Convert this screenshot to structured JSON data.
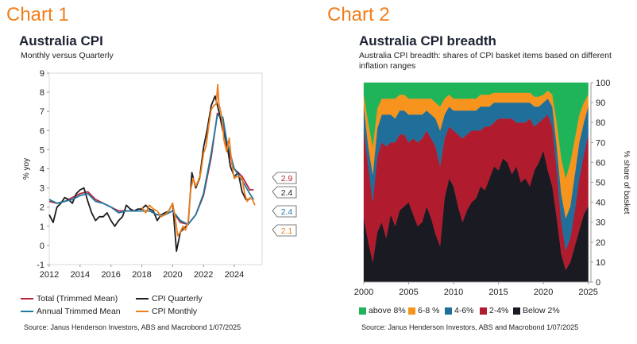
{
  "charts": [
    {
      "panel_label": "Chart 1",
      "title": "Australia CPI",
      "subtitle": "Monthly versus Quarterly",
      "ylabel": "% yoy",
      "source": "Source: Janus Henderson Investors, ABS and Macrobond  1/07/2025",
      "legend": [
        {
          "name": "Total (Trimmed Mean)",
          "color": "#b5233a"
        },
        {
          "name": "CPI Quarterly",
          "color": "#1d1d22"
        },
        {
          "name": "Annual Trimmed Mean",
          "color": "#1f7aa0"
        },
        {
          "name": "CPI Monthly",
          "color": "#f07e1a"
        }
      ],
      "end_labels": [
        {
          "text": "2.9",
          "color": "#b5233a"
        },
        {
          "text": "2.4",
          "color": "#1d1d22"
        },
        {
          "text": "2.4",
          "color": "#1f7aa0"
        },
        {
          "text": "2.1",
          "color": "#f07e1a"
        }
      ]
    },
    {
      "panel_label": "Chart 2",
      "title": "Australia CPI breadth",
      "subtitle": "Australia CPI breadth: shares of CPI basket items based on different inflation ranges",
      "ylabel": "% share of basket",
      "source": "Source: Janus Henderson Investors, ABS and Macrobond  1/07/2025",
      "legend": [
        {
          "name": "above 8%",
          "color": "#1fb45a"
        },
        {
          "name": "6-8 %",
          "color": "#f7941d"
        },
        {
          "name": "4-6%",
          "color": "#1f6f9a"
        },
        {
          "name": "2-4%",
          "color": "#b01c2e"
        },
        {
          "name": "Below 2%",
          "color": "#1a1a22"
        }
      ]
    }
  ],
  "chart_data": [
    {
      "type": "line",
      "xlim": [
        2012,
        2025.8
      ],
      "ylim": [
        -1,
        9
      ],
      "xticks": [
        "2012",
        "2014",
        "2016",
        "2018",
        "2020",
        "2022",
        "2024"
      ],
      "yticks": [
        "-1",
        "0",
        "1",
        "2",
        "3",
        "4",
        "5",
        "6",
        "7",
        "8",
        "9"
      ],
      "series": [
        {
          "name": "Total (Trimmed Mean)",
          "color": "#b5233a",
          "x": [
            2012,
            2012.5,
            2013,
            2013.5,
            2014,
            2014.5,
            2015,
            2015.5,
            2016,
            2016.5,
            2017,
            2017.5,
            2018,
            2018.5,
            2019,
            2019.5,
            2020,
            2020.5,
            2021,
            2021.5,
            2022,
            2022.5,
            2022.9,
            2023.25,
            2023.5,
            2024,
            2024.5,
            2025,
            2025.25
          ],
          "y": [
            2.3,
            2.2,
            2.3,
            2.5,
            2.7,
            2.8,
            2.4,
            2.2,
            2.0,
            1.8,
            1.8,
            1.8,
            1.8,
            1.8,
            1.6,
            1.6,
            1.8,
            1.2,
            1.1,
            1.6,
            2.6,
            4.6,
            6.9,
            6.5,
            5.2,
            4.0,
            3.6,
            2.9,
            2.9
          ]
        },
        {
          "name": "CPI Quarterly",
          "color": "#1d1d22",
          "x": [
            2012,
            2012.25,
            2012.5,
            2012.75,
            2013,
            2013.25,
            2013.5,
            2013.75,
            2014,
            2014.25,
            2014.5,
            2014.75,
            2015,
            2015.25,
            2015.5,
            2015.75,
            2016,
            2016.25,
            2016.5,
            2016.75,
            2017,
            2017.25,
            2017.5,
            2017.75,
            2018,
            2018.25,
            2018.5,
            2018.75,
            2019,
            2019.25,
            2019.5,
            2019.75,
            2020,
            2020.25,
            2020.5,
            2020.75,
            2021,
            2021.25,
            2021.5,
            2021.75,
            2022,
            2022.25,
            2022.5,
            2022.75,
            2023,
            2023.25,
            2023.5,
            2023.75,
            2024,
            2024.25,
            2024.5,
            2024.75,
            2025
          ],
          "y": [
            1.6,
            1.2,
            2.0,
            2.2,
            2.5,
            2.4,
            2.2,
            2.7,
            2.9,
            3.0,
            2.3,
            1.7,
            1.3,
            1.5,
            1.5,
            1.7,
            1.3,
            1.0,
            1.3,
            1.5,
            2.1,
            1.9,
            1.8,
            1.9,
            1.9,
            2.1,
            1.9,
            1.8,
            1.3,
            1.6,
            1.7,
            1.8,
            2.2,
            -0.3,
            0.7,
            0.9,
            1.1,
            3.8,
            3.0,
            3.5,
            5.1,
            6.1,
            7.3,
            7.8,
            7.0,
            6.0,
            5.4,
            4.1,
            3.6,
            3.8,
            2.8,
            2.4,
            2.4
          ]
        },
        {
          "name": "Annual Trimmed Mean",
          "color": "#1f7aa0",
          "x": [
            2012,
            2012.5,
            2013,
            2013.5,
            2014,
            2014.5,
            2015,
            2015.5,
            2016,
            2016.5,
            2017,
            2017.5,
            2018,
            2018.5,
            2019,
            2019.5,
            2020,
            2020.5,
            2021,
            2021.5,
            2022,
            2022.5,
            2022.9,
            2023.25,
            2023.5,
            2024,
            2024.5,
            2025,
            2025.25
          ],
          "y": [
            2.4,
            2.2,
            2.3,
            2.4,
            2.6,
            2.7,
            2.3,
            2.2,
            2.0,
            1.7,
            1.8,
            1.8,
            1.8,
            1.8,
            1.6,
            1.6,
            1.8,
            1.3,
            1.1,
            1.6,
            2.7,
            4.8,
            6.8,
            6.7,
            5.5,
            4.0,
            3.4,
            2.7,
            2.4
          ]
        },
        {
          "name": "CPI Monthly",
          "color": "#f07e1a",
          "x": [
            2018,
            2018.25,
            2018.5,
            2018.75,
            2019,
            2019.25,
            2019.5,
            2019.75,
            2020,
            2020.17,
            2020.33,
            2020.5,
            2020.67,
            2020.83,
            2021,
            2021.17,
            2021.33,
            2021.5,
            2021.67,
            2021.83,
            2022,
            2022.17,
            2022.33,
            2022.5,
            2022.67,
            2022.83,
            2022.92,
            2023,
            2023.17,
            2023.33,
            2023.5,
            2023.67,
            2023.83,
            2024,
            2024.17,
            2024.33,
            2024.5,
            2024.67,
            2024.83,
            2025,
            2025.17,
            2025.33
          ],
          "y": [
            2.0,
            1.7,
            2.1,
            1.9,
            1.8,
            1.5,
            1.6,
            1.8,
            2.2,
            1.4,
            0.5,
            0.7,
            1.0,
            0.8,
            1.2,
            2.9,
            3.5,
            3.1,
            3.4,
            3.8,
            4.8,
            5.2,
            6.2,
            7.1,
            7.3,
            7.4,
            8.4,
            7.4,
            6.8,
            5.5,
            4.9,
            5.6,
            4.3,
            3.5,
            3.6,
            3.6,
            3.5,
            2.7,
            2.3,
            2.5,
            2.4,
            2.1
          ]
        }
      ]
    },
    {
      "type": "area",
      "xlim": [
        2000,
        2025.3
      ],
      "ylim": [
        0,
        100
      ],
      "xticks": [
        "2000",
        "2005",
        "2010",
        "2015",
        "2020",
        "2025"
      ],
      "yticks": [
        "0",
        "10",
        "20",
        "30",
        "40",
        "50",
        "60",
        "70",
        "80",
        "90",
        "100"
      ],
      "x": [
        2000,
        2000.5,
        2001,
        2001.5,
        2002,
        2002.5,
        2003,
        2003.5,
        2004,
        2004.5,
        2005,
        2005.5,
        2006,
        2006.5,
        2007,
        2007.5,
        2008,
        2008.5,
        2009,
        2009.5,
        2010,
        2010.5,
        2011,
        2011.5,
        2012,
        2012.5,
        2013,
        2013.5,
        2014,
        2014.5,
        2015,
        2015.5,
        2016,
        2016.5,
        2017,
        2017.5,
        2018,
        2018.5,
        2019,
        2019.5,
        2020,
        2020.5,
        2021,
        2021.5,
        2022,
        2022.5,
        2023,
        2023.5,
        2024,
        2024.5,
        2025
      ],
      "series": [
        {
          "name": "Below 2%",
          "color": "#1a1a22",
          "values": [
            32,
            20,
            10,
            25,
            30,
            22,
            34,
            28,
            36,
            38,
            40,
            34,
            28,
            30,
            38,
            32,
            24,
            18,
            42,
            52,
            48,
            38,
            30,
            36,
            40,
            42,
            48,
            46,
            52,
            58,
            56,
            62,
            60,
            54,
            58,
            50,
            52,
            48,
            56,
            60,
            66,
            56,
            48,
            32,
            14,
            6,
            10,
            18,
            26,
            34,
            38
          ]
        },
        {
          "name": "2-4%",
          "color": "#b01c2e",
          "values": [
            44,
            38,
            30,
            38,
            40,
            46,
            36,
            42,
            38,
            36,
            30,
            38,
            42,
            42,
            38,
            40,
            44,
            40,
            30,
            26,
            28,
            36,
            42,
            38,
            36,
            34,
            28,
            32,
            26,
            22,
            26,
            20,
            22,
            28,
            22,
            30,
            28,
            34,
            22,
            20,
            16,
            28,
            30,
            24,
            16,
            10,
            12,
            18,
            26,
            30,
            36
          ]
        },
        {
          "name": "4-6%",
          "color": "#1f6f9a",
          "values": [
            12,
            10,
            14,
            14,
            14,
            16,
            14,
            12,
            12,
            12,
            14,
            12,
            14,
            12,
            10,
            12,
            14,
            18,
            12,
            10,
            10,
            12,
            14,
            12,
            10,
            10,
            12,
            10,
            10,
            10,
            8,
            8,
            8,
            8,
            10,
            10,
            10,
            8,
            10,
            8,
            8,
            8,
            10,
            12,
            14,
            16,
            16,
            18,
            18,
            16,
            14
          ]
        },
        {
          "name": "6-8 %",
          "color": "#f7941d",
          "values": [
            6,
            12,
            14,
            10,
            8,
            8,
            8,
            10,
            8,
            8,
            8,
            8,
            8,
            8,
            6,
            8,
            8,
            12,
            8,
            6,
            6,
            6,
            6,
            6,
            6,
            6,
            6,
            6,
            6,
            5,
            5,
            5,
            5,
            5,
            5,
            5,
            5,
            5,
            5,
            5,
            4,
            4,
            6,
            12,
            18,
            20,
            22,
            18,
            14,
            10,
            6
          ]
        },
        {
          "name": "above 8%",
          "color": "#1fb45a",
          "values": [
            6,
            20,
            32,
            13,
            8,
            8,
            8,
            8,
            6,
            6,
            8,
            8,
            8,
            8,
            8,
            8,
            10,
            12,
            8,
            6,
            8,
            8,
            8,
            8,
            8,
            8,
            6,
            6,
            6,
            5,
            5,
            5,
            5,
            5,
            5,
            5,
            5,
            5,
            7,
            7,
            6,
            4,
            6,
            20,
            38,
            48,
            40,
            28,
            16,
            10,
            6
          ]
        }
      ]
    }
  ]
}
